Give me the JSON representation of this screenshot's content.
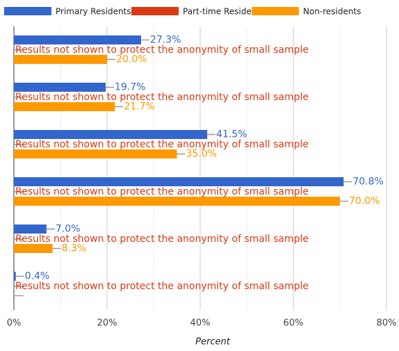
{
  "chart_data": {
    "type": "barh",
    "x_label": "Percent",
    "categories": [
      null,
      null,
      null,
      null,
      null,
      null
    ],
    "series": [
      {
        "name": "Primary Residents",
        "color": "#3366cc",
        "values": [
          27.3,
          19.7,
          41.5,
          70.8,
          7.0,
          0.4
        ],
        "value_labels": [
          "27.3%",
          "19.7%",
          "41.5%",
          "70.8%",
          "7.0%",
          "0.4%"
        ]
      },
      {
        "name": "Part-time Residents",
        "color": "#dc3912",
        "values": [
          null,
          null,
          null,
          null,
          null,
          null
        ],
        "note": "Results not shown to protect the anonymity of small sample"
      },
      {
        "name": "Non-residents",
        "color": "#ff9900",
        "values": [
          20.0,
          21.7,
          35.0,
          70.0,
          8.3,
          null
        ],
        "value_labels": [
          "20.0%",
          "21.7%",
          "35.0%",
          "70.0%",
          "8.3%",
          null
        ]
      }
    ],
    "xlim": [
      0,
      80
    ],
    "xticks": [
      {
        "value": 0,
        "label": "0%"
      },
      {
        "value": 20,
        "label": "20%"
      },
      {
        "value": 40,
        "label": "40%"
      },
      {
        "value": 60,
        "label": "60%"
      },
      {
        "value": 80,
        "label": "80%"
      }
    ],
    "grid": true,
    "legend": "top"
  }
}
